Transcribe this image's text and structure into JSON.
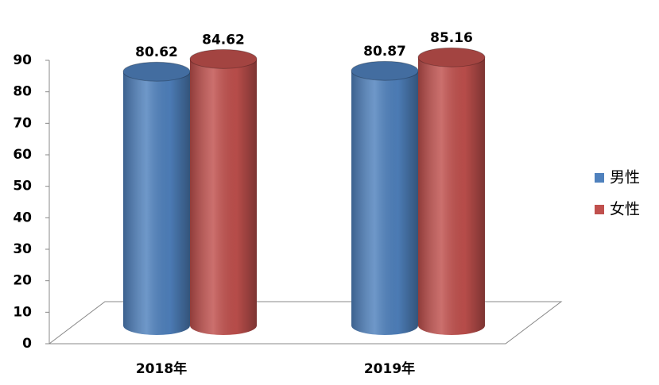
{
  "chart_data": {
    "type": "bar",
    "categories": [
      "2018年",
      "2019年"
    ],
    "series": [
      {
        "name": "男性",
        "color": "#4f81bd",
        "values": [
          80.62,
          80.87
        ]
      },
      {
        "name": "女性",
        "color": "#c0504d",
        "values": [
          84.62,
          85.16
        ]
      }
    ],
    "ylim": [
      0,
      90
    ],
    "yticks": [
      0,
      10,
      20,
      30,
      40,
      50,
      60,
      70,
      80,
      90
    ],
    "legend": "right"
  }
}
